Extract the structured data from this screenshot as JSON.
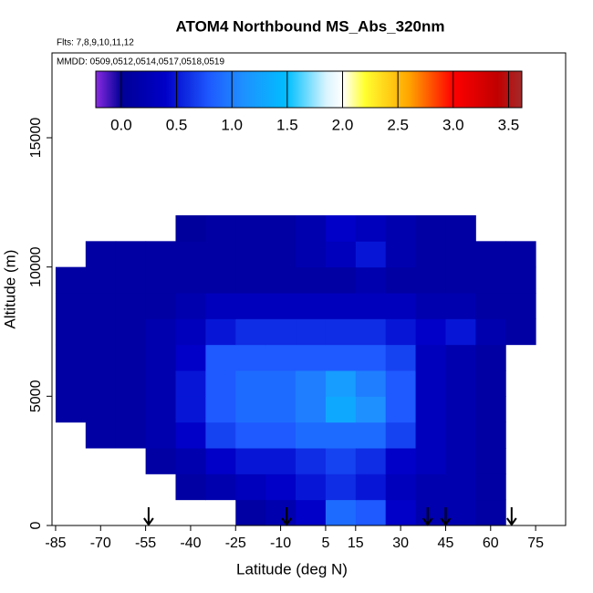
{
  "chart_data": {
    "type": "heatmap",
    "title": "ATOM4 Northbound MS_Abs_320nm",
    "flights": "Flts: 7,8,9,10,11,12",
    "dates": "MMDD: 0509,0512,0514,0517,0518,0519",
    "x_label": "Latitude (deg N)",
    "y_label": "Altitude (m)",
    "xlim": [
      -86.2,
      85
    ],
    "ylim": [
      0,
      18282
    ],
    "xticks": [
      -85,
      -70,
      -55,
      -40,
      -25,
      -10,
      5,
      15,
      30,
      45,
      60,
      75
    ],
    "yticks": [
      0,
      5000,
      10000,
      15000
    ],
    "lat_edges": [
      -85,
      -75,
      -65,
      -55,
      -45,
      -35,
      -25,
      -15,
      -5,
      5,
      15,
      25,
      35,
      45,
      55,
      65,
      75
    ],
    "alt_edges": [
      0,
      1000,
      2000,
      3000,
      4000,
      5000,
      6000,
      7000,
      8000,
      9000,
      10000,
      11000,
      12000
    ],
    "z": [
      [
        null,
        null,
        null,
        null,
        null,
        null,
        0.1,
        0.2,
        0.4,
        0.9,
        0.8,
        0.4,
        0.2,
        0.2,
        0.1,
        null
      ],
      [
        null,
        null,
        null,
        null,
        0.1,
        0.2,
        0.3,
        0.4,
        0.5,
        0.6,
        0.5,
        0.3,
        0.2,
        0.2,
        0.1,
        null
      ],
      [
        null,
        null,
        null,
        0.1,
        0.2,
        0.4,
        0.5,
        0.5,
        0.6,
        0.7,
        0.6,
        0.4,
        0.3,
        0.2,
        0.1,
        null
      ],
      [
        null,
        0.1,
        0.1,
        0.2,
        0.4,
        0.7,
        0.8,
        0.8,
        0.9,
        0.9,
        0.9,
        0.7,
        0.3,
        0.2,
        0.1,
        null
      ],
      [
        0.1,
        0.1,
        0.1,
        0.2,
        0.5,
        0.8,
        0.9,
        0.9,
        1.0,
        1.3,
        1.1,
        0.8,
        0.3,
        0.2,
        0.1,
        null
      ],
      [
        0.1,
        0.1,
        0.1,
        0.2,
        0.5,
        0.8,
        0.9,
        0.9,
        1.0,
        1.2,
        1.0,
        0.8,
        0.3,
        0.2,
        0.1,
        null
      ],
      [
        0.1,
        0.1,
        0.1,
        0.2,
        0.4,
        0.8,
        0.8,
        0.8,
        0.8,
        0.8,
        0.8,
        0.7,
        0.3,
        0.2,
        0.1,
        null
      ],
      [
        0.1,
        0.1,
        0.1,
        0.2,
        0.3,
        0.5,
        0.6,
        0.6,
        0.6,
        0.6,
        0.6,
        0.5,
        0.4,
        0.5,
        0.2,
        0.1
      ],
      [
        0.1,
        0.1,
        0.1,
        0.1,
        0.2,
        0.3,
        0.3,
        0.3,
        0.3,
        0.3,
        0.3,
        0.3,
        0.2,
        0.2,
        0.1,
        0.1
      ],
      [
        0.1,
        0.1,
        0.1,
        0.1,
        0.1,
        0.1,
        0.1,
        0.1,
        0.1,
        0.1,
        0.2,
        0.1,
        0.1,
        0.1,
        0.1,
        0.1
      ],
      [
        null,
        0.1,
        0.1,
        0.1,
        0.1,
        0.1,
        0.1,
        0.1,
        0.2,
        0.3,
        0.5,
        0.2,
        0.1,
        0.1,
        0.1,
        0.1
      ],
      [
        null,
        null,
        null,
        null,
        0.05,
        0.1,
        0.1,
        0.1,
        0.2,
        0.4,
        0.3,
        0.2,
        0.1,
        0.1,
        null,
        null
      ]
    ],
    "arrows_lat": [
      -54,
      -8,
      39,
      45,
      67
    ],
    "clim": [
      -0.23,
      3.62
    ],
    "cticks": [
      {
        "value": 0,
        "label": "0.0"
      },
      {
        "value": 0.5,
        "label": "0.5"
      },
      {
        "value": 1,
        "label": "1.0"
      },
      {
        "value": 1.5,
        "label": "1.5"
      },
      {
        "value": 2,
        "label": "2.0"
      },
      {
        "value": 2.5,
        "label": "2.5"
      },
      {
        "value": 3,
        "label": "3.0"
      },
      {
        "value": 3.5,
        "label": "3.5"
      }
    ],
    "colorscale": [
      {
        "value": -0.23,
        "color": "#8a2be2"
      },
      {
        "value": 0,
        "color": "#000096"
      },
      {
        "value": 0.4,
        "color": "#0000c8"
      },
      {
        "value": 0.8,
        "color": "#1e5aff"
      },
      {
        "value": 1.1,
        "color": "#1e90ff"
      },
      {
        "value": 1.5,
        "color": "#00bfff"
      },
      {
        "value": 1.85,
        "color": "#d8f4ff"
      },
      {
        "value": 2.0,
        "color": "#ffffff"
      },
      {
        "value": 2.2,
        "color": "#ffff30"
      },
      {
        "value": 2.6,
        "color": "#ffa500"
      },
      {
        "value": 3.0,
        "color": "#ff0000"
      },
      {
        "value": 3.4,
        "color": "#c00000"
      },
      {
        "value": 3.62,
        "color": "#a52a2a"
      }
    ]
  }
}
